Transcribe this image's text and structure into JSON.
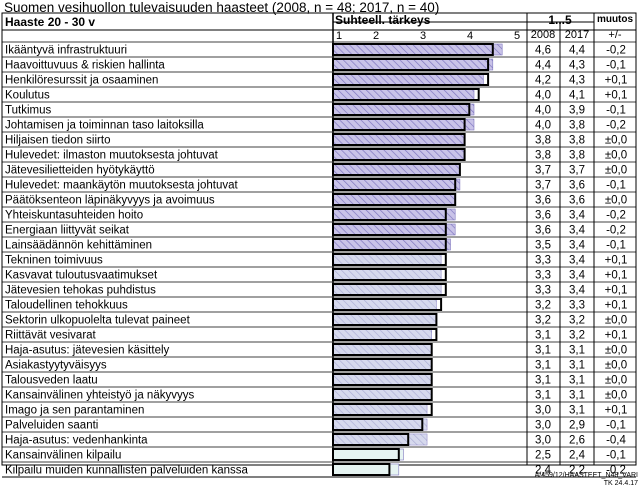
{
  "title": "Suomen vesihuollon  tulevaisuuden haasteet  (2008, n = 48; 2017, n = 40)",
  "footer_code": "A/459/12/HAASTEET_N48_VARI",
  "footer_date": "TK 24.4.17",
  "chart_data": {
    "type": "bar",
    "header_group": "Haaste 20 - 30 v",
    "header_bar": "Suhteell. tärkeys",
    "header_scale": "1...5",
    "header_change": "muutos",
    "header_2008": "2008",
    "header_2017": "2017",
    "header_sign": "+/-",
    "xlim": [
      1,
      5
    ],
    "ticks": [
      "1",
      "2",
      "3",
      "4",
      "5"
    ],
    "series": [
      {
        "name": "2008",
        "pattern": "hatched",
        "values": [
          4.6,
          4.4,
          4.2,
          4.0,
          4.0,
          4.0,
          3.8,
          3.8,
          3.7,
          3.7,
          3.6,
          3.6,
          3.6,
          3.5,
          3.3,
          3.3,
          3.3,
          3.2,
          3.2,
          3.1,
          3.1,
          3.1,
          3.1,
          3.1,
          3.0,
          3.0,
          3.0,
          2.5,
          2.4
        ]
      },
      {
        "name": "2017",
        "pattern": "solid",
        "values": [
          4.4,
          4.3,
          4.3,
          4.1,
          3.9,
          3.8,
          3.8,
          3.8,
          3.7,
          3.6,
          3.6,
          3.4,
          3.4,
          3.4,
          3.4,
          3.4,
          3.4,
          3.3,
          3.2,
          3.2,
          3.1,
          3.1,
          3.1,
          3.1,
          3.1,
          2.9,
          2.6,
          2.4,
          2.2
        ]
      }
    ],
    "categories": [
      "Ikääntyvä infrastruktuuri",
      "Haavoittuvuus & riskien hallinta",
      "Henkilöresurssit ja osaaminen",
      "Koulutus",
      "Tutkimus",
      "Johtamisen ja toiminnan taso laitoksilla",
      "Hiljaisen tiedon siirto",
      "Hulevedet: ilmaston muutoksesta johtuvat",
      "Jätevesilietteiden hyötykäyttö",
      "Hulevedet: maankäytön muutoksesta johtuvat",
      "Päätöksenteon läpinäkyvyys ja avoimuus",
      "Yhteiskuntasuhteiden hoito",
      "Energiaan liittyvät seikat",
      "Lainsäädännön kehittäminen",
      "Tekninen toimivuus",
      "Kasvavat tuloutusvaatimukset",
      "Jätevesien tehokas puhdistus",
      "Taloudellinen tehokkuus",
      "Sektorin ulkopuolelta tulevat paineet",
      "Riittävät vesivarat",
      "Haja-asutus: jätevesien käsittely",
      "Asiakastyytyväisyys",
      "Talousveden laatu",
      "Kansainvälinen yhteistyö ja näkyvyys",
      "Imago ja sen parantaminen",
      "Palveluiden saanti",
      "Haja-asutus: vedenhankinta",
      "Kansainvälinen kilpailu",
      "Kilpailu muiden kunnallisten palveluiden kanssa"
    ],
    "labels_2008": [
      "4,6",
      "4,4",
      "4,2",
      "4,0",
      "4,0",
      "4,0",
      "3,8",
      "3,8",
      "3,7",
      "3,7",
      "3,6",
      "3,6",
      "3,6",
      "3,5",
      "3,3",
      "3,3",
      "3,3",
      "3,2",
      "3,2",
      "3,1",
      "3,1",
      "3,1",
      "3,1",
      "3,1",
      "3,0",
      "3,0",
      "3,0",
      "2,5",
      "2,4"
    ],
    "labels_2017": [
      "4,4",
      "4,3",
      "4,3",
      "4,1",
      "3,9",
      "3,8",
      "3,8",
      "3,8",
      "3,7",
      "3,6",
      "3,6",
      "3,4",
      "3,4",
      "3,4",
      "3,4",
      "3,4",
      "3,4",
      "3,3",
      "3,2",
      "3,2",
      "3,1",
      "3,1",
      "3,1",
      "3,1",
      "3,1",
      "2,9",
      "2,6",
      "2,4",
      "2,2"
    ],
    "changes": [
      "-0,2",
      "-0,1",
      "+0,1",
      "+0,1",
      "-0,1",
      "-0,2",
      "±0,0",
      "±0,0",
      "±0,0",
      "-0,1",
      "±0,0",
      "-0,2",
      "-0,2",
      "-0,1",
      "+0,1",
      "+0,1",
      "+0,1",
      "+0,1",
      "±0,0",
      "+0,1",
      "±0,0",
      "±0,0",
      "±0,0",
      "±0,0",
      "+0,1",
      "-0,1",
      "-0,4",
      "-0,1",
      "-0,2"
    ],
    "colors": {
      "fill_2008": "#c9c3e8",
      "hatch": "#8078c0",
      "fill_low": "#e6f4f2",
      "bar_2017": "#000000"
    }
  }
}
